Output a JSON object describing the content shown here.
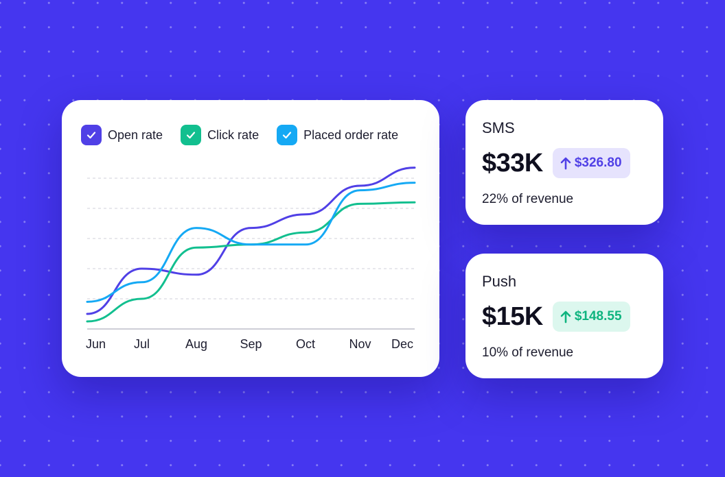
{
  "colors": {
    "background": "#4536ef",
    "open_rate": "#5040e6",
    "click_rate": "#12bf8f",
    "placed_order_rate": "#15a9f4",
    "badge_sms_bg": "#e6e3fd",
    "badge_sms_fg": "#5040e6",
    "badge_push_bg": "#dcf7ee",
    "badge_push_fg": "#0fb47f"
  },
  "chart_data": {
    "type": "line",
    "categories": [
      "Jun",
      "Jul",
      "Aug",
      "Sep",
      "Oct",
      "Nov",
      "Dec"
    ],
    "series": [
      {
        "name": "Open rate",
        "color": "#5040e6",
        "values": [
          0.5,
          2.0,
          1.8,
          3.35,
          3.8,
          4.75,
          5.35
        ]
      },
      {
        "name": "Click rate",
        "color": "#12bf8f",
        "values": [
          0.25,
          1.0,
          2.7,
          2.8,
          3.2,
          4.15,
          4.2
        ]
      },
      {
        "name": "Placed order rate",
        "color": "#15a9f4",
        "values": [
          0.9,
          1.55,
          3.35,
          2.8,
          2.8,
          4.6,
          4.85
        ]
      }
    ],
    "ylim": [
      0,
      5.5
    ],
    "grid": true,
    "legend": "top"
  },
  "cards": [
    {
      "title": "SMS",
      "value": "$33K",
      "change": "$326.80",
      "direction": "up",
      "share": "22% of revenue"
    },
    {
      "title": "Push",
      "value": "$15K",
      "change": "$148.55",
      "direction": "up",
      "share": "10% of revenue"
    }
  ],
  "icons": {
    "legend_check": "check-icon",
    "change": "arrow-up-icon"
  }
}
